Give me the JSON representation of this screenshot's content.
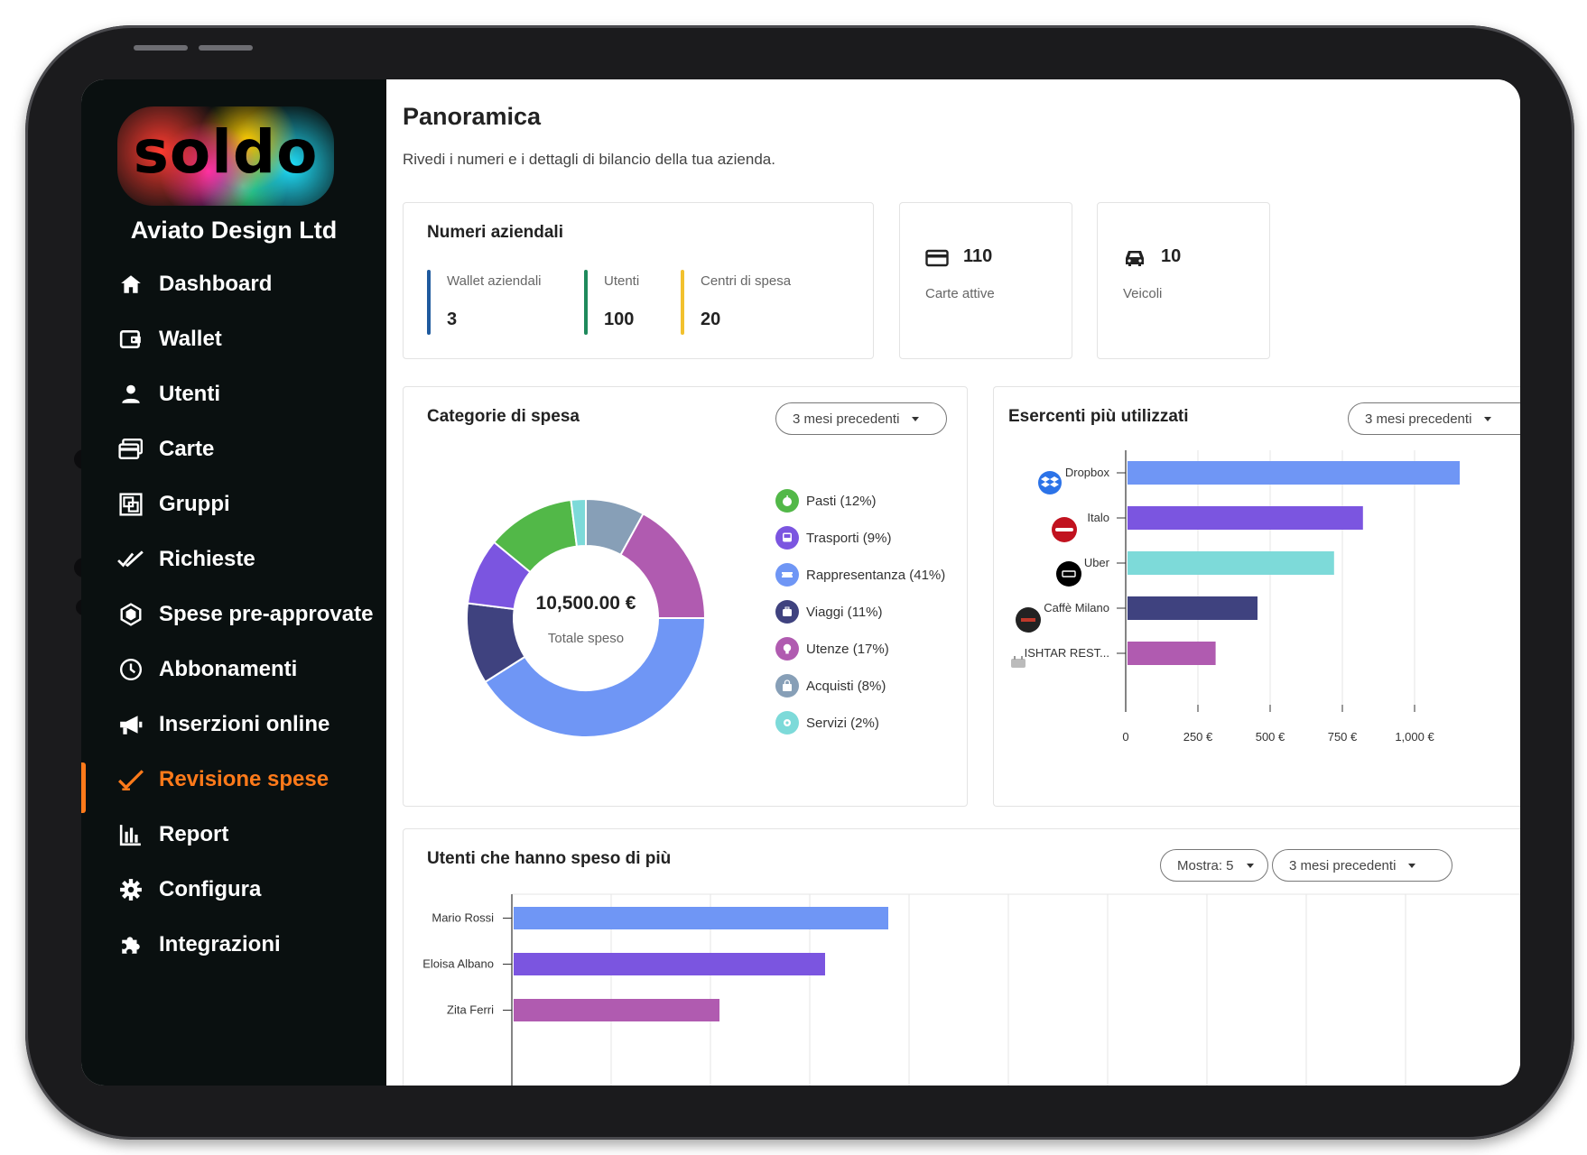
{
  "app": {
    "logo_text": "soldo",
    "company_name": "Aviato Design Ltd"
  },
  "sidebar": {
    "items": [
      {
        "label": "Dashboard",
        "icon": "home-icon",
        "active": false
      },
      {
        "label": "Wallet",
        "icon": "wallet-icon",
        "active": false
      },
      {
        "label": "Utenti",
        "icon": "user-icon",
        "active": false
      },
      {
        "label": "Carte",
        "icon": "cards-icon",
        "active": false
      },
      {
        "label": "Gruppi",
        "icon": "groups-icon",
        "active": false
      },
      {
        "label": "Richieste",
        "icon": "double-check-icon",
        "active": false
      },
      {
        "label": "Spese pre-approvate",
        "icon": "hexagon-icon",
        "active": false
      },
      {
        "label": "Abbonamenti",
        "icon": "clock-icon",
        "active": false
      },
      {
        "label": "Inserzioni online",
        "icon": "megaphone-icon",
        "active": false
      },
      {
        "label": "Revisione spese",
        "icon": "check-icon",
        "active": true
      },
      {
        "label": "Report",
        "icon": "bar-chart-icon",
        "active": false
      },
      {
        "label": "Configura",
        "icon": "gear-icon",
        "active": false
      },
      {
        "label": "Integrazioni",
        "icon": "puzzle-icon",
        "active": false
      }
    ],
    "active_color": "#ff7a1a"
  },
  "page": {
    "title": "Panoramica",
    "subtitle": "Rivedi i numeri e i dettagli di bilancio della tua azienda."
  },
  "company_numbers": {
    "title": "Numeri aziendali",
    "stats": [
      {
        "label": "Wallet aziendali",
        "value": "3",
        "color": "#1f5a9e"
      },
      {
        "label": "Utenti",
        "value": "100",
        "color": "#1e8a5c"
      },
      {
        "label": "Centri di spesa",
        "value": "20",
        "color": "#f2c12e"
      }
    ]
  },
  "mini_stats": [
    {
      "value": "110",
      "label": "Carte attive",
      "icon": "card-icon"
    },
    {
      "value": "10",
      "label": "Veicoli",
      "icon": "car-icon"
    }
  ],
  "categories": {
    "title": "Categorie di spesa",
    "period": "3 mesi precedenti",
    "total_value": "10,500.00 €",
    "total_label": "Totale speso",
    "items": [
      {
        "label": "Pasti (12%)",
        "color": "#52b848",
        "icon": "apple-icon"
      },
      {
        "label": "Trasporti (9%)",
        "color": "#7b55e0",
        "icon": "bus-icon"
      },
      {
        "label": "Rappresentanza (41%)",
        "color": "#6f96f5",
        "icon": "ticket-icon"
      },
      {
        "label": "Viaggi (11%)",
        "color": "#3f427f",
        "icon": "luggage-icon"
      },
      {
        "label": "Utenze (17%)",
        "color": "#b05bb0",
        "icon": "bulb-icon"
      },
      {
        "label": "Acquisti (8%)",
        "color": "#879fb7",
        "icon": "bag-icon"
      },
      {
        "label": "Servizi (2%)",
        "color": "#7ddad9",
        "icon": "gear-small-icon"
      }
    ]
  },
  "merchants": {
    "title": "Esercenti più utilizzati",
    "period": "3 mesi precedenti"
  },
  "top_users": {
    "title": "Utenti che hanno speso di più",
    "show": "Mostra: 5",
    "period": "3 mesi precedenti"
  },
  "chart_data": [
    {
      "type": "pie",
      "title": "Categorie di spesa",
      "categories": [
        "Pasti",
        "Trasporti",
        "Rappresentanza",
        "Viaggi",
        "Utenze",
        "Acquisti",
        "Servizi"
      ],
      "values": [
        12,
        9,
        41,
        11,
        17,
        8,
        2
      ],
      "colors": [
        "#52b848",
        "#7b55e0",
        "#6f96f5",
        "#3f427f",
        "#b05bb0",
        "#879fb7",
        "#7ddad9"
      ],
      "order_clockwise_from_top": [
        "Acquisti",
        "Utenze",
        "Rappresentanza",
        "Viaggi",
        "Trasporti",
        "Pasti",
        "Servizi"
      ]
    },
    {
      "type": "bar",
      "title": "Esercenti più utilizzati",
      "orientation": "horizontal",
      "categories": [
        "Dropbox",
        "Italo",
        "Uber",
        "Caffè Milano",
        "ISHTAR REST..."
      ],
      "values": [
        1150,
        815,
        715,
        450,
        305
      ],
      "colors": [
        "#6f96f5",
        "#7b55e0",
        "#7ddad9",
        "#3f427f",
        "#b05bb0"
      ],
      "xticks": [
        "0",
        "250 €",
        "500 €",
        "750 €",
        "1,000 €"
      ],
      "xlim": [
        0,
        1125
      ]
    },
    {
      "type": "bar",
      "title": "Utenti che hanno speso di più",
      "orientation": "horizontal",
      "categories": [
        "Mario Rossi",
        "Eloisa Albano",
        "Zita Ferri"
      ],
      "values": [
        415,
        345,
        228
      ],
      "colors": [
        "#6f96f5",
        "#7b55e0",
        "#b05bb0"
      ],
      "grid": true
    }
  ]
}
